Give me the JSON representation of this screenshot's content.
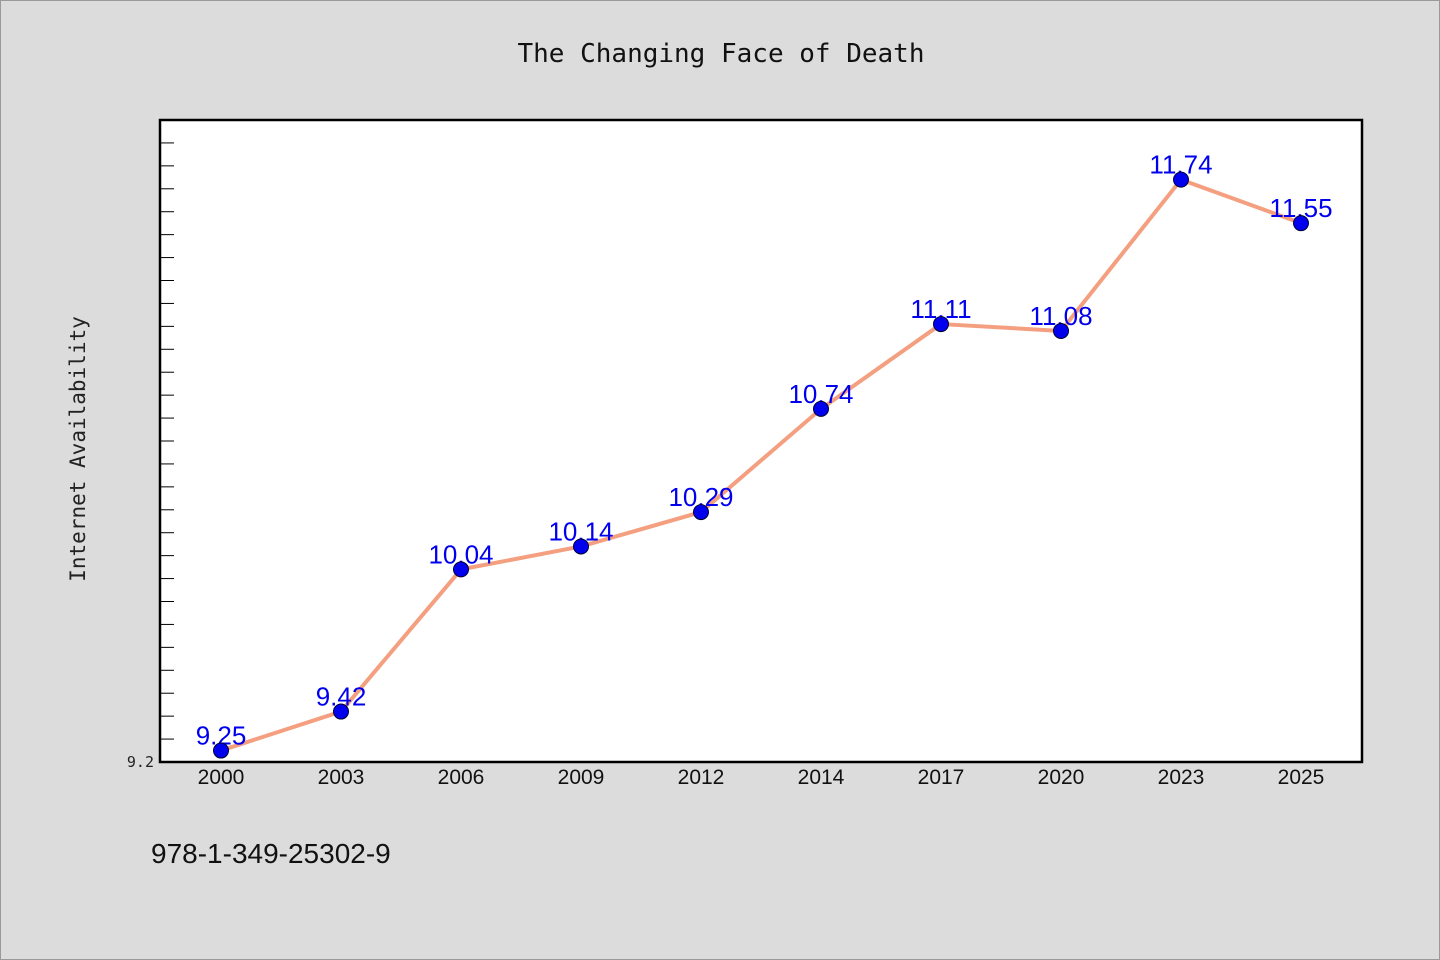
{
  "chart_data": {
    "type": "line",
    "title": "The Changing Face of Death",
    "xlabel": "",
    "ylabel": "Internet Availability",
    "categories": [
      "2000",
      "2003",
      "2006",
      "2009",
      "2012",
      "2014",
      "2017",
      "2020",
      "2023",
      "2025"
    ],
    "series": [
      {
        "values": [
          9.25,
          9.42,
          10.04,
          10.14,
          10.29,
          10.74,
          11.11,
          11.08,
          11.74,
          11.55
        ],
        "labels": [
          "9.25",
          "9.42",
          "10.04",
          "10.14",
          "10.29",
          "10.74",
          "11.11",
          "11.08",
          "11.74",
          "11.55"
        ],
        "line_color": "#f4a080",
        "marker_color": "#0000ee",
        "label_color": "#0000ee"
      }
    ],
    "ylim": [
      9.2,
      12.0
    ],
    "y_tick_labels": [
      "9.2"
    ],
    "y_minor_tick_step": 0.1,
    "grid": false,
    "legend": "none"
  },
  "footer": {
    "isbn": "978-1-349-25302-9"
  },
  "colors": {
    "background": "#dcdcdc",
    "plot_background": "#ffffff",
    "axis": "#000000"
  }
}
